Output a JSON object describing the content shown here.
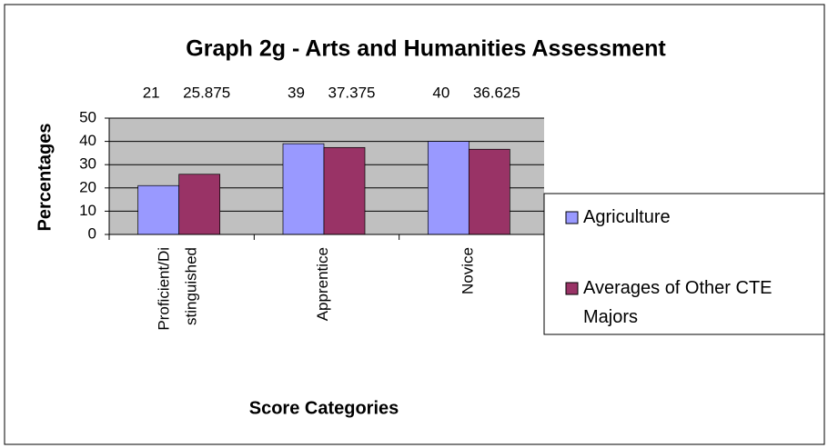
{
  "chart_data": {
    "type": "bar",
    "title": "Graph 2g - Arts and Humanities Assessment",
    "x_label": "Score Categories",
    "y_label": "Percentages",
    "categories": [
      "Proficient/Distinguished",
      "Apprentice",
      "Novice"
    ],
    "series": [
      {
        "name": "Agriculture",
        "color": "#9999ff",
        "values": [
          21,
          39,
          40
        ]
      },
      {
        "name": "Averages of Other CTE Majors",
        "color": "#993366",
        "values": [
          25.875,
          37.375,
          36.625
        ]
      }
    ],
    "ylim": [
      0,
      50
    ],
    "yticks": [
      0,
      10,
      20,
      30,
      40,
      50
    ],
    "grid": true,
    "legend": "right"
  }
}
